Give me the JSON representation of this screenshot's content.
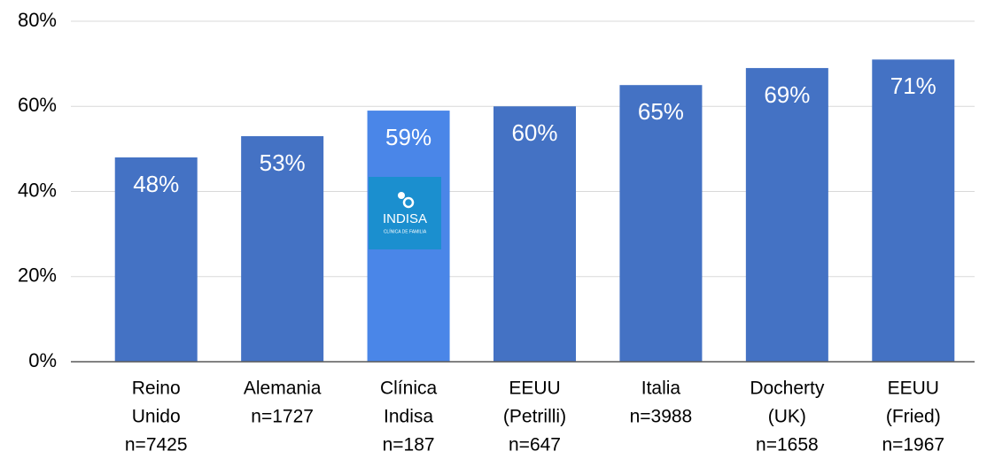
{
  "chart_data": {
    "type": "bar",
    "categories": [
      [
        "Reino",
        "Unido",
        "n=7425"
      ],
      [
        "Alemania",
        "n=1727"
      ],
      [
        "Clínica",
        "Indisa",
        "n=187"
      ],
      [
        "EEUU",
        "(Petrilli)",
        "n=647"
      ],
      [
        "Italia",
        "n=3988"
      ],
      [
        "Docherty",
        "(UK)",
        "n=1658"
      ],
      [
        "EEUU",
        "(Fried)",
        "n=1967"
      ]
    ],
    "values": [
      48,
      53,
      59,
      60,
      65,
      69,
      71
    ],
    "value_labels": [
      "48%",
      "53%",
      "59%",
      "60%",
      "65%",
      "69%",
      "71%"
    ],
    "colors": [
      "#4472c4",
      "#4472c4",
      "#4a86e8",
      "#4472c4",
      "#4472c4",
      "#4472c4",
      "#4472c4"
    ],
    "ylim": [
      0,
      80
    ],
    "yticks": [
      {
        "value": 0,
        "label": "0%"
      },
      {
        "value": 20,
        "label": "20%"
      },
      {
        "value": 40,
        "label": "40%"
      },
      {
        "value": 60,
        "label": "60%"
      },
      {
        "value": 80,
        "label": "80%"
      }
    ],
    "grid": true,
    "logo": {
      "text": "INDISA",
      "subtext": "CLÍNICA DE FAMILIA"
    }
  }
}
